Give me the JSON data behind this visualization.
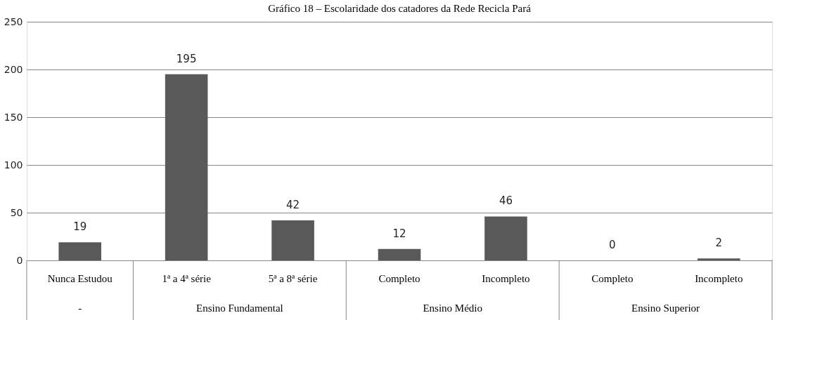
{
  "chart_data": {
    "type": "bar",
    "title": "Gráfico 18 – Escolaridade dos catadores da Rede Recicla Pará",
    "categories": [
      "Nunca Estudou",
      "1ª a 4ª série",
      "5ª a 8ª série",
      "Completo",
      "Incompleto",
      "Completo",
      "Incompleto"
    ],
    "values": [
      19,
      195,
      42,
      12,
      46,
      0,
      2
    ],
    "color": "#595959",
    "annotations": [
      "-",
      "Ensino Fundamental",
      "Ensino Médio",
      "Ensino Superior"
    ],
    "ylim": [
      0,
      250
    ],
    "yticks": [
      0,
      50,
      100,
      150,
      200,
      250
    ],
    "grid": "y",
    "data_labels": true
  }
}
